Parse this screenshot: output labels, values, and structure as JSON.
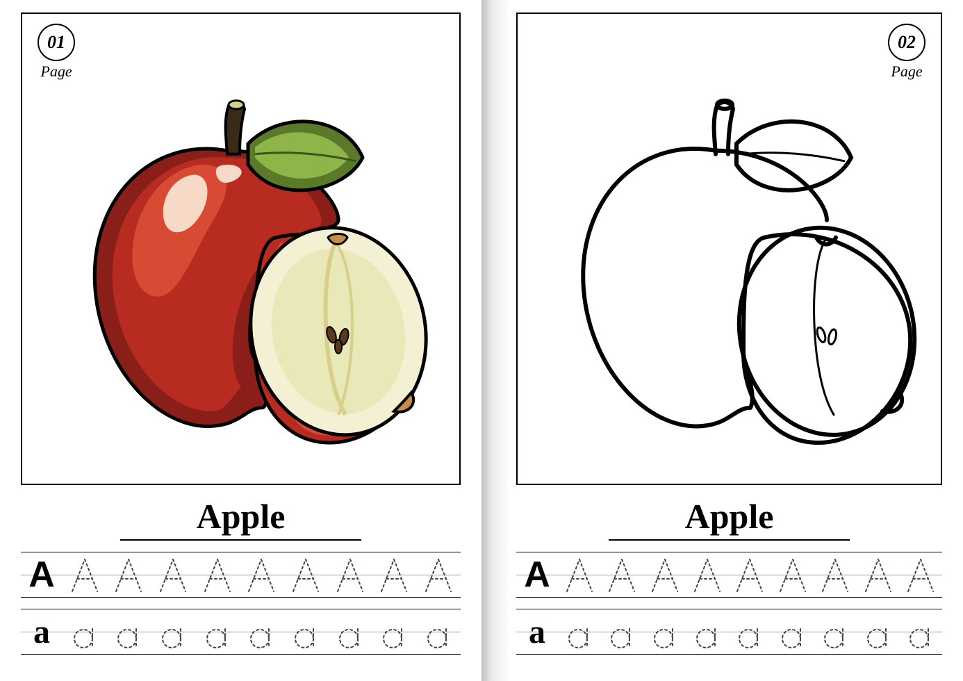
{
  "pages": [
    {
      "number": "01",
      "page_label": "Page",
      "word": "Apple",
      "upper": "A",
      "lower": "a",
      "colored": true,
      "trace_count": 9
    },
    {
      "number": "02",
      "page_label": "Page",
      "word": "Apple",
      "upper": "A",
      "lower": "a",
      "colored": false,
      "trace_count": 9
    }
  ],
  "style": {
    "apple_colors": {
      "red_dark": "#8a1f1a",
      "red_mid": "#b72b20",
      "red_light": "#d84a33",
      "red_highlight": "#f7d9c8",
      "flesh_outer": "#f3f0d3",
      "flesh_inner": "#e9e8b9",
      "flesh_core": "#d7cf8a",
      "leaf_dark": "#5a7a2a",
      "leaf_light": "#8fb44a",
      "stem": "#3a2a18",
      "seed": "#5a3a1a",
      "outline": "#000000"
    },
    "trace_dash": "3,4",
    "trace_stroke": "#444444",
    "frame_border": "#000000"
  }
}
